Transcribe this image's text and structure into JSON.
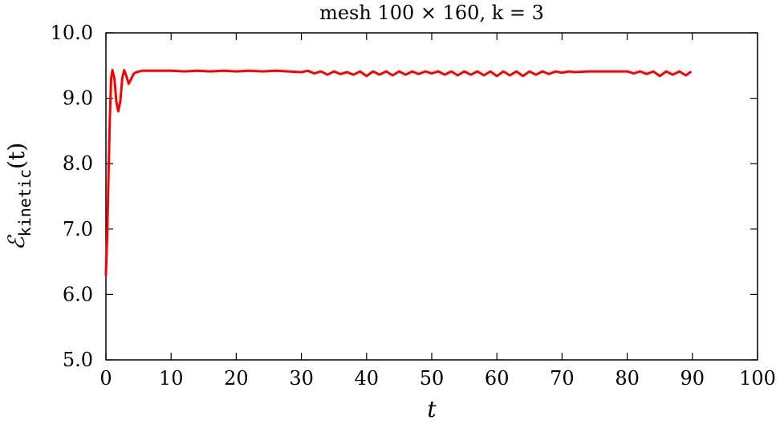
{
  "chart_data": {
    "type": "line",
    "title": "mesh 100 × 160, k = 3",
    "xlabel": "t",
    "ylabel_main": "ℰ",
    "ylabel_sub": "kinetic",
    "ylabel_tail": "(t)",
    "xlim": [
      0,
      100
    ],
    "ylim": [
      5.0,
      10.0
    ],
    "xticks": [
      "0",
      "10",
      "20",
      "30",
      "40",
      "50",
      "60",
      "70",
      "80",
      "90",
      "100"
    ],
    "yticks": [
      "5.0",
      "6.0",
      "7.0",
      "8.0",
      "9.0",
      "10.0"
    ],
    "grid": false,
    "legend": "none",
    "series": [
      {
        "color": "#ff0000",
        "x": [
          0,
          0.2,
          0.4,
          0.6,
          0.8,
          1.0,
          1.3,
          1.6,
          1.9,
          2.2,
          2.5,
          2.8,
          3.1,
          3.5,
          3.9,
          4.3,
          4.7,
          5.1,
          5.6,
          6.0,
          7,
          8,
          10,
          12,
          14,
          16,
          18,
          20,
          22,
          24,
          26,
          28,
          30,
          31,
          32,
          33,
          34,
          35,
          36,
          37,
          38,
          39,
          40,
          41,
          42,
          43,
          44,
          45,
          46,
          47,
          48,
          49,
          50,
          51,
          52,
          53,
          54,
          55,
          56,
          57,
          58,
          59,
          60,
          61,
          62,
          63,
          64,
          65,
          66,
          67,
          68,
          69,
          70,
          71,
          72,
          74,
          76,
          78,
          80,
          81,
          82,
          83,
          84,
          85,
          86,
          87,
          88,
          89,
          89.7
        ],
        "y": [
          6.3,
          6.9,
          7.8,
          8.7,
          9.3,
          9.43,
          9.3,
          8.95,
          8.8,
          8.95,
          9.3,
          9.43,
          9.35,
          9.22,
          9.3,
          9.38,
          9.4,
          9.41,
          9.42,
          9.42,
          9.42,
          9.42,
          9.42,
          9.41,
          9.42,
          9.41,
          9.42,
          9.41,
          9.42,
          9.41,
          9.42,
          9.41,
          9.4,
          9.42,
          9.38,
          9.41,
          9.36,
          9.41,
          9.37,
          9.4,
          9.36,
          9.41,
          9.34,
          9.41,
          9.36,
          9.41,
          9.35,
          9.41,
          9.36,
          9.41,
          9.37,
          9.41,
          9.38,
          9.41,
          9.36,
          9.41,
          9.35,
          9.41,
          9.36,
          9.41,
          9.35,
          9.41,
          9.34,
          9.41,
          9.35,
          9.41,
          9.34,
          9.41,
          9.36,
          9.41,
          9.37,
          9.41,
          9.39,
          9.41,
          9.4,
          9.41,
          9.41,
          9.41,
          9.41,
          9.38,
          9.41,
          9.37,
          9.41,
          9.34,
          9.41,
          9.36,
          9.41,
          9.35,
          9.4
        ]
      }
    ]
  }
}
